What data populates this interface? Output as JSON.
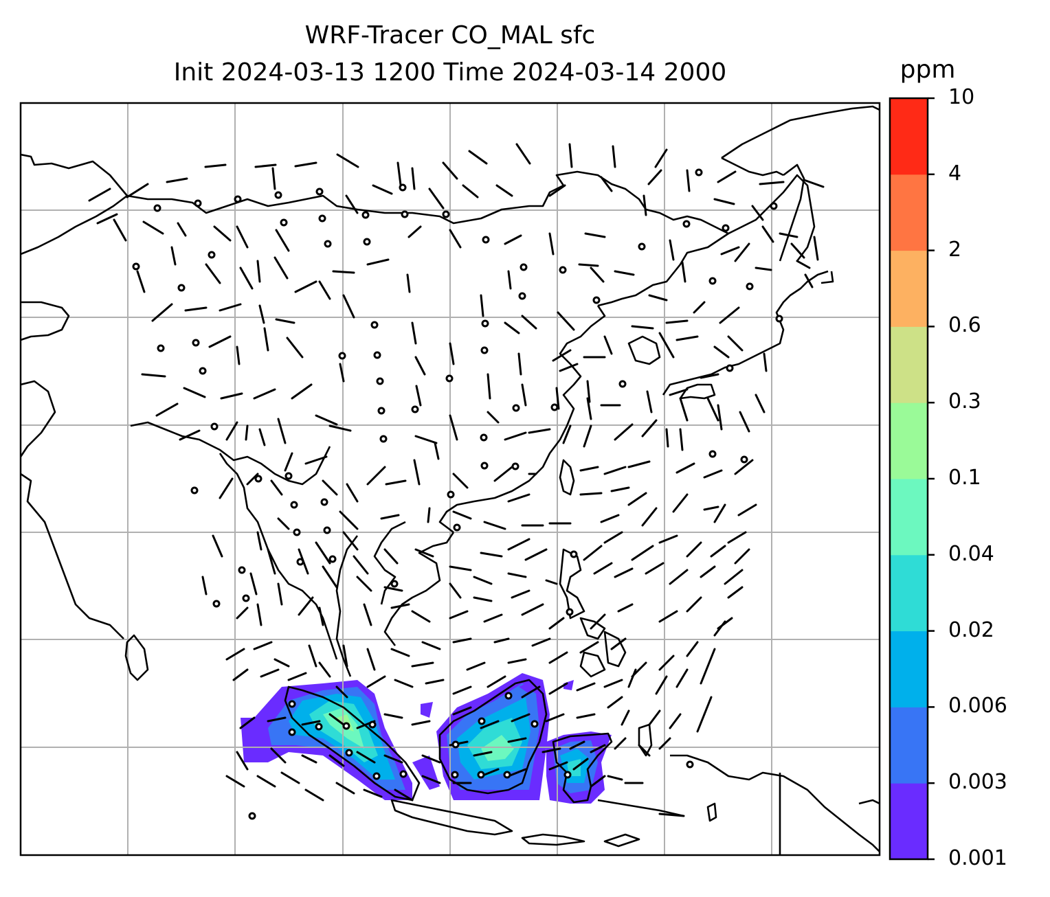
{
  "title": {
    "line1": "WRF-Tracer CO_MAL sfc",
    "line2": "Init 2024-03-13 1200 Time 2024-03-14 2000"
  },
  "colorbar": {
    "units": "ppm",
    "ticks": [
      "0.001",
      "0.003",
      "0.006",
      "0.02",
      "0.04",
      "0.1",
      "0.3",
      "0.6",
      "2",
      "4",
      "10"
    ],
    "colors": [
      "#6a2cff",
      "#3875f5",
      "#00b0eb",
      "#2fdcd6",
      "#6cf8bf",
      "#9afa98",
      "#cde187",
      "#fdb161",
      "#ff7542",
      "#ff2a16"
    ]
  },
  "map": {
    "projection_note": "plate carree",
    "gridlines": true,
    "gridline_color": "#b0b0b0",
    "coastline_color": "#000000",
    "wind_symbol": "barbs"
  }
}
